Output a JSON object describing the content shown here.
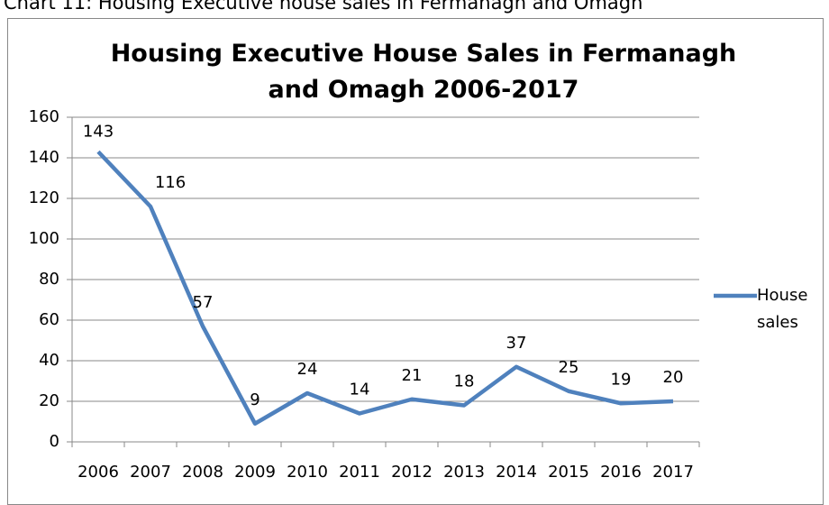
{
  "caption": "Chart 11: Housing Executive house sales in Fermanagh and Omagh",
  "chart_data": {
    "type": "line",
    "title": "Housing Executive House Sales in Fermanagh and Omagh 2006-2017",
    "categories": [
      "2006",
      "2007",
      "2008",
      "2009",
      "2010",
      "2011",
      "2012",
      "2013",
      "2014",
      "2015",
      "2016",
      "2017"
    ],
    "series": [
      {
        "name": "House sales",
        "color": "#4f81bd",
        "values": [
          143,
          116,
          57,
          9,
          24,
          14,
          21,
          18,
          37,
          25,
          19,
          20
        ]
      }
    ],
    "ylim": [
      0,
      160
    ],
    "yticks": [
      0,
      20,
      40,
      60,
      80,
      100,
      120,
      140,
      160
    ],
    "grid": true,
    "legend": "right"
  }
}
